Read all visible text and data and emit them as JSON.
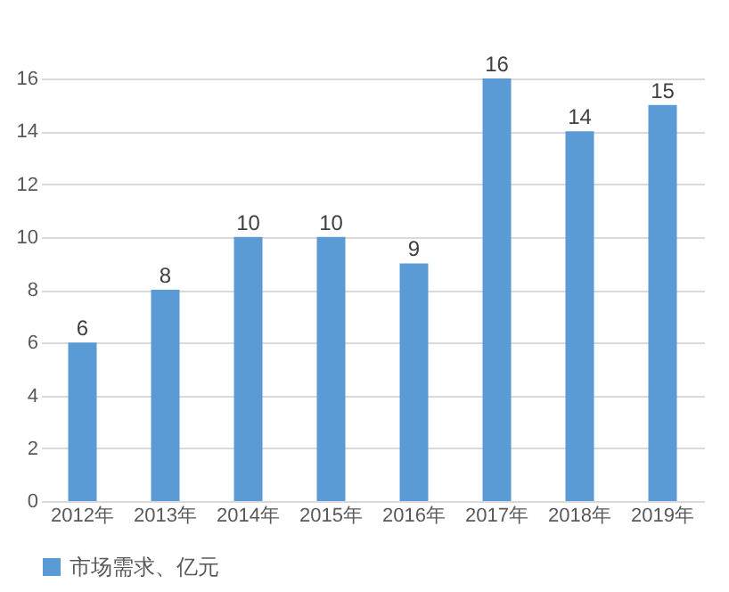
{
  "chart_data": {
    "type": "bar",
    "categories": [
      "2012年",
      "2013年",
      "2014年",
      "2015年",
      "2016年",
      "2017年",
      "2018年",
      "2019年"
    ],
    "series": [
      {
        "name": "市场需求、亿元",
        "color": "#5b9bd5",
        "values": [
          6,
          8,
          10,
          10,
          9,
          16,
          14,
          15
        ]
      }
    ],
    "ylim": [
      0,
      16
    ],
    "yticks": [
      0,
      2,
      4,
      6,
      8,
      10,
      12,
      14,
      16
    ],
    "grid": "y",
    "legend": "bottom",
    "data_labels": true
  }
}
